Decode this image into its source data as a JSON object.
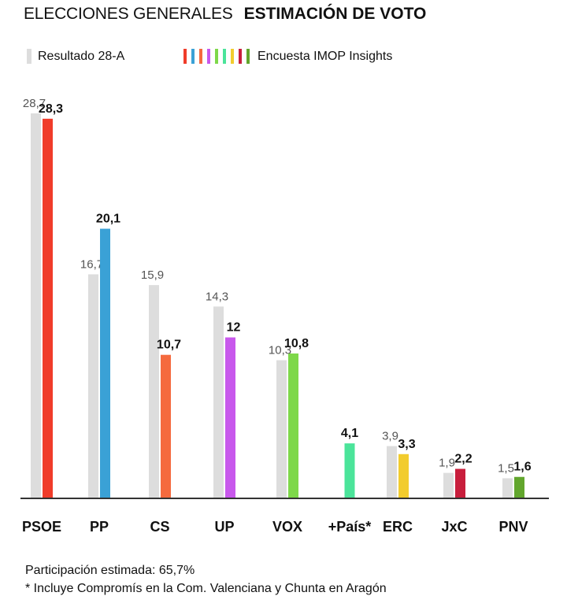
{
  "header": {
    "title_light": "ELECCIONES GENERALES",
    "title_bold": "ESTIMACIÓN DE VOTO"
  },
  "legend": {
    "result_label": "Resultado 28-A",
    "survey_label": "Encuesta IMOP Insights",
    "result_color": "#dddddd",
    "survey_colors": [
      "#f03c2a",
      "#3aa1d6",
      "#f56a3e",
      "#c858ec",
      "#7ed84a",
      "#4be49a",
      "#f2cc2e",
      "#c81e3c",
      "#62a62d"
    ]
  },
  "chart_data": {
    "type": "bar",
    "title": "ESTIMACIÓN DE VOTO",
    "categories": [
      "PSOE",
      "PP",
      "CS",
      "UP",
      "VOX",
      "+País*",
      "ERC",
      "JxC",
      "PNV"
    ],
    "series": [
      {
        "name": "Resultado 28-A",
        "values": [
          28.7,
          16.7,
          15.9,
          14.3,
          10.3,
          null,
          3.9,
          1.9,
          1.5
        ],
        "labels": [
          "28,7",
          "16,7",
          "15,9",
          "14,3",
          "10,3",
          "",
          "3,9",
          "1,9",
          "1,5"
        ],
        "color": "#dddddd"
      },
      {
        "name": "Encuesta IMOP Insights",
        "values": [
          28.3,
          20.1,
          10.7,
          12,
          10.8,
          4.1,
          3.3,
          2.2,
          1.6
        ],
        "labels": [
          "28,3",
          "20,1",
          "10,7",
          "12",
          "10,8",
          "4,1",
          "3,3",
          "2,2",
          "1,6"
        ],
        "colors": [
          "#f03c2a",
          "#3aa1d6",
          "#f56a3e",
          "#c858ec",
          "#7ed84a",
          "#4be49a",
          "#f2cc2e",
          "#c81e3c",
          "#62a62d"
        ]
      }
    ],
    "xlabel": "",
    "ylabel": "",
    "ylim": [
      0,
      30
    ],
    "grid": false,
    "legend_position": "top-left"
  },
  "footer": {
    "participation": "Participación estimada: 65,7%",
    "note": "* Incluye Compromís en la Com. Valenciana y Chunta en Aragón"
  }
}
